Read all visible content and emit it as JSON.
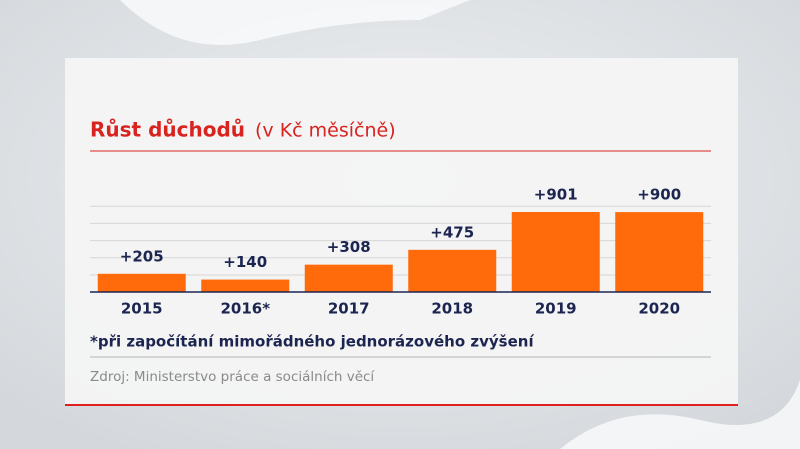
{
  "chart_data": {
    "type": "bar",
    "title": "Růst důchodů",
    "subtitle": "(v Kč měsíčně)",
    "categories": [
      "2015",
      "2016*",
      "2017",
      "2018",
      "2019",
      "2020"
    ],
    "values": [
      205,
      140,
      308,
      475,
      901,
      900
    ],
    "value_labels": [
      "+205",
      "+140",
      "+308",
      "+475",
      "+901",
      "+900"
    ],
    "color": "#ff6b0a",
    "note": "*při započítání mimořádného jednorázového zvýšení",
    "source": "Zdroj: Ministerstvo práce a sociálních věcí"
  }
}
